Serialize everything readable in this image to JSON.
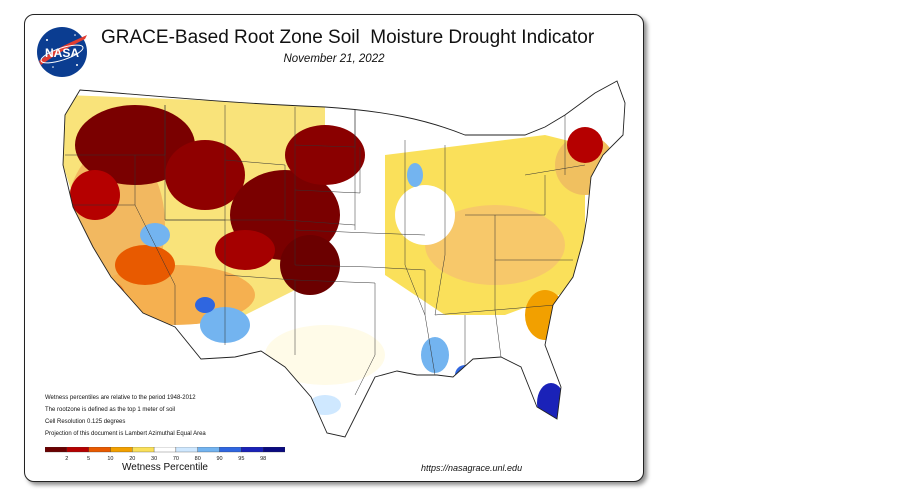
{
  "title": "GRACE-Based Root Zone Soil  Moisture Drought Indicator",
  "date": "November 21, 2022",
  "logo_text": "NASA",
  "notes": [
    "Wetness percentiles are relative to the period 1948-2012",
    "The rootzone is defined as the top 1 meter of soil",
    "Cell Resolution 0.125 degrees",
    "Projection of this document is Lambert Azimuthal Equal Area"
  ],
  "legend": {
    "title": "Wetness Percentile",
    "ticks": [
      "2",
      "5",
      "10",
      "20",
      "30",
      "70",
      "80",
      "90",
      "95",
      "98"
    ],
    "colors": [
      "#6b0000",
      "#b50000",
      "#e85a00",
      "#f2a000",
      "#fae05a",
      "#ffffff",
      "#cfe8ff",
      "#73b4f0",
      "#2f66e0",
      "#1a22b8",
      "#0a0a80"
    ]
  },
  "url": "https://nasagrace.unl.edu"
}
